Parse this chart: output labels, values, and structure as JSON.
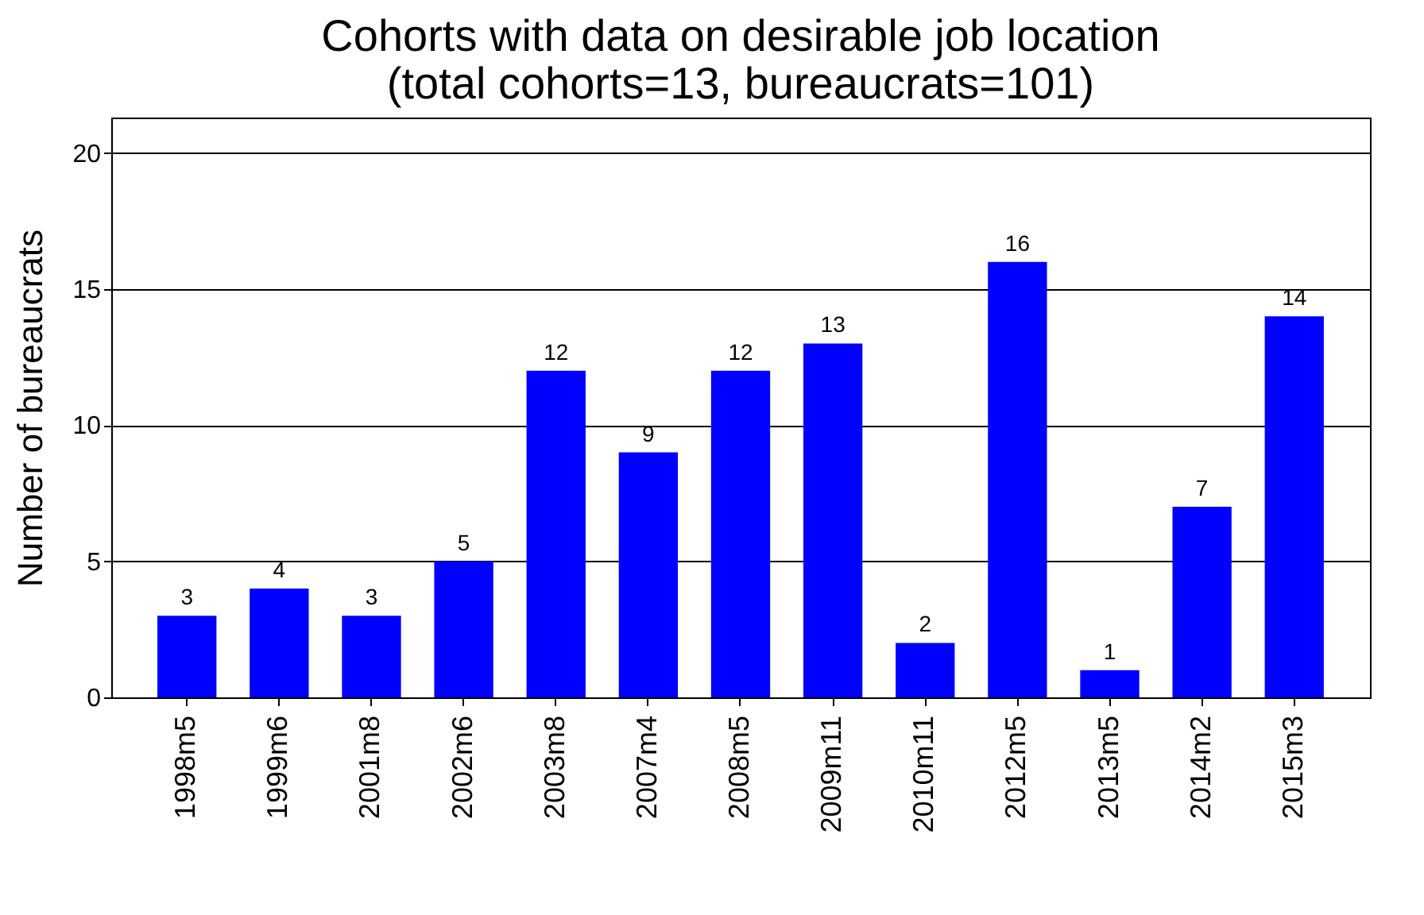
{
  "chart_data": {
    "type": "bar",
    "title": [
      "Cohorts with data on desirable job location",
      "(total cohorts=13, bureaucrats=101)"
    ],
    "ylabel": "Number of bureaucrats",
    "categories": [
      "1998m5",
      "1999m6",
      "2001m8",
      "2002m6",
      "2003m8",
      "2007m4",
      "2008m5",
      "2009m11",
      "2010m11",
      "2012m5",
      "2013m5",
      "2014m2",
      "2015m3"
    ],
    "values": [
      3,
      4,
      3,
      5,
      12,
      9,
      12,
      13,
      2,
      16,
      1,
      7,
      14
    ],
    "color": "#0000ff",
    "ylim": [
      0,
      21.3
    ],
    "yticks": [
      0,
      5,
      10,
      15,
      20
    ],
    "grid": "y",
    "data_labels": true
  }
}
